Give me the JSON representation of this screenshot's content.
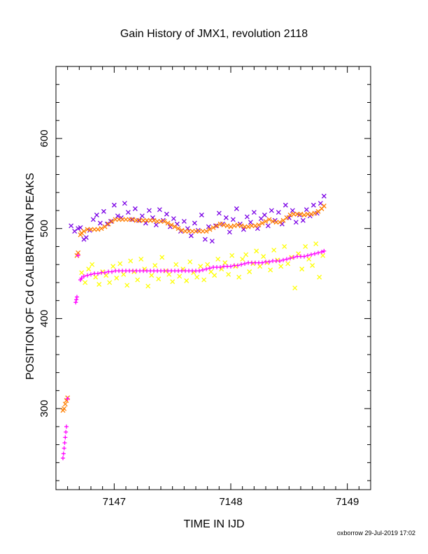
{
  "chart_data": {
    "type": "scatter",
    "title": "Gain History of JMX1, revolution 2118",
    "xlabel": "TIME IN IJD",
    "ylabel": "POSITION OF Cd CALIBRATION PEAKS",
    "xlim": [
      7146.5,
      7149.2
    ],
    "ylim": [
      210,
      680
    ],
    "xticks": [
      7147,
      7148,
      7149
    ],
    "yticks": [
      300,
      400,
      500,
      600
    ],
    "grid": false,
    "series": [
      {
        "marker": "x",
        "color": "#7a00e6",
        "points": [
          [
            7146.63,
            503
          ],
          [
            7146.66,
            497
          ],
          [
            7146.69,
            500
          ],
          [
            7146.71,
            501
          ],
          [
            7146.74,
            488
          ],
          [
            7146.76,
            490
          ],
          [
            7146.79,
            498
          ],
          [
            7146.82,
            510
          ],
          [
            7146.85,
            515
          ],
          [
            7146.88,
            506
          ],
          [
            7146.91,
            519
          ],
          [
            7146.94,
            505
          ],
          [
            7146.97,
            508
          ],
          [
            7147.0,
            526
          ],
          [
            7147.03,
            514
          ],
          [
            7147.06,
            512
          ],
          [
            7147.09,
            528
          ],
          [
            7147.12,
            518
          ],
          [
            7147.15,
            510
          ],
          [
            7147.18,
            522
          ],
          [
            7147.21,
            509
          ],
          [
            7147.24,
            514
          ],
          [
            7147.27,
            506
          ],
          [
            7147.3,
            520
          ],
          [
            7147.33,
            512
          ],
          [
            7147.36,
            504
          ],
          [
            7147.39,
            521
          ],
          [
            7147.42,
            509
          ],
          [
            7147.45,
            516
          ],
          [
            7147.48,
            502
          ],
          [
            7147.51,
            511
          ],
          [
            7147.54,
            505
          ],
          [
            7147.57,
            497
          ],
          [
            7147.6,
            508
          ],
          [
            7147.63,
            500
          ],
          [
            7147.66,
            492
          ],
          [
            7147.69,
            506
          ],
          [
            7147.72,
            498
          ],
          [
            7147.75,
            515
          ],
          [
            7147.78,
            488
          ],
          [
            7147.81,
            502
          ],
          [
            7147.84,
            486
          ],
          [
            7147.87,
            503
          ],
          [
            7147.9,
            517
          ],
          [
            7147.93,
            505
          ],
          [
            7147.96,
            512
          ],
          [
            7147.99,
            496
          ],
          [
            7148.02,
            510
          ],
          [
            7148.05,
            522
          ],
          [
            7148.08,
            505
          ],
          [
            7148.11,
            499
          ],
          [
            7148.14,
            513
          ],
          [
            7148.17,
            507
          ],
          [
            7148.2,
            518
          ],
          [
            7148.23,
            500
          ],
          [
            7148.26,
            511
          ],
          [
            7148.29,
            515
          ],
          [
            7148.32,
            503
          ],
          [
            7148.35,
            520
          ],
          [
            7148.38,
            509
          ],
          [
            7148.41,
            518
          ],
          [
            7148.44,
            505
          ],
          [
            7148.47,
            526
          ],
          [
            7148.5,
            512
          ],
          [
            7148.53,
            520
          ],
          [
            7148.56,
            507
          ],
          [
            7148.59,
            515
          ],
          [
            7148.62,
            509
          ],
          [
            7148.65,
            521
          ],
          [
            7148.68,
            514
          ],
          [
            7148.71,
            526
          ],
          [
            7148.74,
            517
          ],
          [
            7148.77,
            528
          ],
          [
            7148.8,
            536
          ]
        ]
      },
      {
        "marker": "x",
        "color": "#ffff00",
        "points": [
          [
            7146.72,
            451
          ],
          [
            7146.75,
            440
          ],
          [
            7146.78,
            455
          ],
          [
            7146.81,
            460
          ],
          [
            7146.84,
            446
          ],
          [
            7146.87,
            438
          ],
          [
            7146.9,
            452
          ],
          [
            7146.93,
            448
          ],
          [
            7146.96,
            440
          ],
          [
            7146.99,
            458
          ],
          [
            7147.02,
            445
          ],
          [
            7147.05,
            461
          ],
          [
            7147.08,
            449
          ],
          [
            7147.11,
            437
          ],
          [
            7147.14,
            464
          ],
          [
            7147.17,
            452
          ],
          [
            7147.2,
            443
          ],
          [
            7147.23,
            466
          ],
          [
            7147.26,
            455
          ],
          [
            7147.29,
            436
          ],
          [
            7147.32,
            448
          ],
          [
            7147.35,
            459
          ],
          [
            7147.38,
            444
          ],
          [
            7147.41,
            468
          ],
          [
            7147.44,
            453
          ],
          [
            7147.47,
            449
          ],
          [
            7147.5,
            441
          ],
          [
            7147.53,
            460
          ],
          [
            7147.56,
            447
          ],
          [
            7147.59,
            455
          ],
          [
            7147.62,
            442
          ],
          [
            7147.65,
            463
          ],
          [
            7147.68,
            451
          ],
          [
            7147.71,
            446
          ],
          [
            7147.74,
            458
          ],
          [
            7147.77,
            443
          ],
          [
            7147.8,
            460
          ],
          [
            7147.83,
            452
          ],
          [
            7147.86,
            448
          ],
          [
            7147.89,
            466
          ],
          [
            7147.92,
            455
          ],
          [
            7147.95,
            462
          ],
          [
            7147.98,
            449
          ],
          [
            7148.01,
            470
          ],
          [
            7148.04,
            458
          ],
          [
            7148.07,
            446
          ],
          [
            7148.1,
            466
          ],
          [
            7148.13,
            471
          ],
          [
            7148.16,
            452
          ],
          [
            7148.19,
            461
          ],
          [
            7148.22,
            475
          ],
          [
            7148.25,
            458
          ],
          [
            7148.28,
            469
          ],
          [
            7148.31,
            462
          ],
          [
            7148.34,
            454
          ],
          [
            7148.37,
            476
          ],
          [
            7148.4,
            465
          ],
          [
            7148.43,
            458
          ],
          [
            7148.46,
            480
          ],
          [
            7148.49,
            461
          ],
          [
            7148.52,
            468
          ],
          [
            7148.55,
            434
          ],
          [
            7148.58,
            472
          ],
          [
            7148.61,
            455
          ],
          [
            7148.64,
            480
          ],
          [
            7148.67,
            466
          ],
          [
            7148.7,
            459
          ],
          [
            7148.73,
            483
          ],
          [
            7148.76,
            446
          ],
          [
            7148.79,
            470
          ]
        ]
      },
      {
        "marker": "x",
        "color": "#ff7f00",
        "points": [
          [
            7146.56,
            298
          ],
          [
            7146.57,
            300
          ],
          [
            7146.58,
            305
          ],
          [
            7146.59,
            309
          ],
          [
            7146.6,
            312
          ],
          [
            7146.68,
            470
          ],
          [
            7146.69,
            473
          ],
          [
            7146.71,
            493
          ],
          [
            7146.72,
            495
          ],
          [
            7146.74,
            497
          ],
          [
            7146.77,
            499
          ],
          [
            7146.8,
            499
          ],
          [
            7146.83,
            499
          ],
          [
            7146.86,
            499
          ],
          [
            7146.89,
            500
          ],
          [
            7146.92,
            502
          ],
          [
            7146.95,
            505
          ],
          [
            7146.98,
            508
          ],
          [
            7147.01,
            510
          ],
          [
            7147.04,
            510
          ],
          [
            7147.07,
            510
          ],
          [
            7147.1,
            510
          ],
          [
            7147.13,
            510
          ],
          [
            7147.16,
            510
          ],
          [
            7147.19,
            509
          ],
          [
            7147.22,
            509
          ],
          [
            7147.25,
            509
          ],
          [
            7147.28,
            509
          ],
          [
            7147.31,
            509
          ],
          [
            7147.34,
            509
          ],
          [
            7147.37,
            508
          ],
          [
            7147.4,
            508
          ],
          [
            7147.43,
            508
          ],
          [
            7147.46,
            506
          ],
          [
            7147.49,
            504
          ],
          [
            7147.52,
            502
          ],
          [
            7147.55,
            500
          ],
          [
            7147.58,
            498
          ],
          [
            7147.61,
            497
          ],
          [
            7147.64,
            497
          ],
          [
            7147.67,
            497
          ],
          [
            7147.7,
            497
          ],
          [
            7147.73,
            497
          ],
          [
            7147.76,
            497
          ],
          [
            7147.79,
            497
          ],
          [
            7147.82,
            499
          ],
          [
            7147.85,
            501
          ],
          [
            7147.88,
            503
          ],
          [
            7147.91,
            505
          ],
          [
            7147.94,
            504
          ],
          [
            7147.97,
            503
          ],
          [
            7148.0,
            502
          ],
          [
            7148.03,
            503
          ],
          [
            7148.06,
            504
          ],
          [
            7148.09,
            503
          ],
          [
            7148.12,
            502
          ],
          [
            7148.15,
            502
          ],
          [
            7148.18,
            503
          ],
          [
            7148.21,
            503
          ],
          [
            7148.24,
            504
          ],
          [
            7148.27,
            506
          ],
          [
            7148.3,
            508
          ],
          [
            7148.33,
            510
          ],
          [
            7148.36,
            508
          ],
          [
            7148.39,
            507
          ],
          [
            7148.42,
            507
          ],
          [
            7148.45,
            509
          ],
          [
            7148.48,
            512
          ],
          [
            7148.51,
            515
          ],
          [
            7148.54,
            516
          ],
          [
            7148.57,
            516
          ],
          [
            7148.6,
            516
          ],
          [
            7148.63,
            515
          ],
          [
            7148.66,
            516
          ],
          [
            7148.69,
            516
          ],
          [
            7148.72,
            517
          ],
          [
            7148.75,
            519
          ],
          [
            7148.78,
            522
          ],
          [
            7148.8,
            525
          ]
        ]
      },
      {
        "marker": "+",
        "color": "#ff00ff",
        "points": [
          [
            7146.56,
            245
          ],
          [
            7146.565,
            250
          ],
          [
            7146.57,
            256
          ],
          [
            7146.575,
            262
          ],
          [
            7146.58,
            268
          ],
          [
            7146.585,
            274
          ],
          [
            7146.59,
            280
          ],
          [
            7146.6,
            311
          ],
          [
            7146.67,
            418
          ],
          [
            7146.675,
            421
          ],
          [
            7146.68,
            424
          ],
          [
            7146.69,
            470
          ],
          [
            7146.71,
            443
          ],
          [
            7146.72,
            445
          ],
          [
            7146.74,
            447
          ],
          [
            7146.77,
            448
          ],
          [
            7146.8,
            449
          ],
          [
            7146.83,
            450
          ],
          [
            7146.86,
            450
          ],
          [
            7146.89,
            451
          ],
          [
            7146.92,
            451
          ],
          [
            7146.95,
            452
          ],
          [
            7146.98,
            452
          ],
          [
            7147.01,
            453
          ],
          [
            7147.04,
            453
          ],
          [
            7147.07,
            453
          ],
          [
            7147.1,
            453
          ],
          [
            7147.13,
            453
          ],
          [
            7147.16,
            453
          ],
          [
            7147.19,
            453
          ],
          [
            7147.22,
            453
          ],
          [
            7147.25,
            453
          ],
          [
            7147.28,
            453
          ],
          [
            7147.31,
            453
          ],
          [
            7147.34,
            453
          ],
          [
            7147.37,
            453
          ],
          [
            7147.4,
            453
          ],
          [
            7147.43,
            453
          ],
          [
            7147.46,
            453
          ],
          [
            7147.49,
            453
          ],
          [
            7147.52,
            453
          ],
          [
            7147.55,
            453
          ],
          [
            7147.58,
            453
          ],
          [
            7147.61,
            453
          ],
          [
            7147.64,
            453
          ],
          [
            7147.67,
            453
          ],
          [
            7147.7,
            453
          ],
          [
            7147.73,
            453
          ],
          [
            7147.76,
            454
          ],
          [
            7147.79,
            455
          ],
          [
            7147.82,
            456
          ],
          [
            7147.85,
            457
          ],
          [
            7147.88,
            457
          ],
          [
            7147.91,
            457
          ],
          [
            7147.94,
            458
          ],
          [
            7147.97,
            458
          ],
          [
            7148.0,
            458
          ],
          [
            7148.03,
            459
          ],
          [
            7148.06,
            459
          ],
          [
            7148.09,
            460
          ],
          [
            7148.12,
            461
          ],
          [
            7148.15,
            462
          ],
          [
            7148.18,
            462
          ],
          [
            7148.21,
            462
          ],
          [
            7148.24,
            462
          ],
          [
            7148.27,
            462
          ],
          [
            7148.3,
            463
          ],
          [
            7148.33,
            463
          ],
          [
            7148.36,
            464
          ],
          [
            7148.39,
            464
          ],
          [
            7148.42,
            464
          ],
          [
            7148.45,
            465
          ],
          [
            7148.48,
            466
          ],
          [
            7148.51,
            467
          ],
          [
            7148.54,
            468
          ],
          [
            7148.57,
            469
          ],
          [
            7148.6,
            469
          ],
          [
            7148.63,
            469
          ],
          [
            7148.66,
            470
          ],
          [
            7148.69,
            471
          ],
          [
            7148.72,
            472
          ],
          [
            7148.75,
            473
          ],
          [
            7148.78,
            474
          ],
          [
            7148.8,
            475
          ]
        ]
      }
    ]
  },
  "footer": "oxborrow 29-Jul-2019 17:02"
}
